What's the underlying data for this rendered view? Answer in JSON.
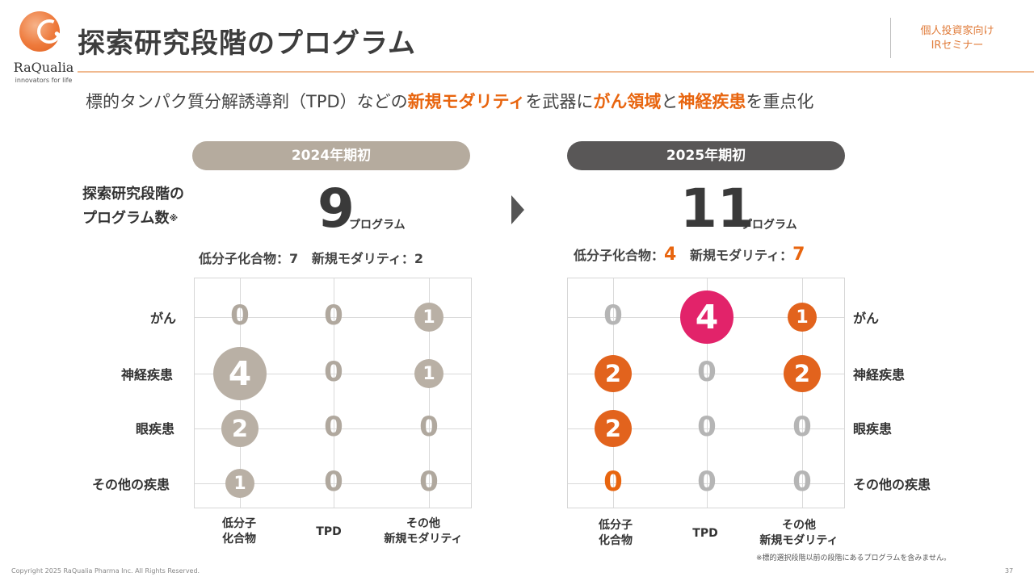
{
  "logo": {
    "name": "RaQualia",
    "tagline": "innovators for life"
  },
  "header": {
    "title": "探索研究段階のプログラム",
    "audience_line1": "個人投資家向け",
    "audience_line2": "IRセミナー"
  },
  "subtitle": {
    "part1": "標的タンパク質分解誘導剤（TPD）などの",
    "hl1": "新規モダリティ",
    "part2": "を武器に",
    "hl2": "がん領域",
    "part3": "と",
    "hl3": "神経疾患",
    "part4": "を重点化"
  },
  "program_label": {
    "line1": "探索研究段階の",
    "line2": "プログラム数",
    "mark": "※"
  },
  "unit": "プログラム",
  "periods": {
    "p2024": {
      "label": "2024年期初",
      "total": "9",
      "small_label": "低分子化合物：",
      "small_value": "7",
      "modality_label": "新規モダリティ：",
      "modality_value": "2"
    },
    "p2025": {
      "label": "2025年期初",
      "total": "11",
      "small_label": "低分子化合物：",
      "small_value": "4",
      "modality_label": "新規モダリティ：",
      "modality_value": "7"
    }
  },
  "rows": [
    "がん",
    "神経疾患",
    "眼疾患",
    "その他の疾患"
  ],
  "columns": [
    {
      "line1": "低分子",
      "line2": "化合物"
    },
    {
      "line1": "TPD",
      "line2": ""
    },
    {
      "line1": "その他",
      "line2": "新規モダリティ"
    }
  ],
  "matrix_2024": [
    [
      "0",
      "0",
      "1"
    ],
    [
      "4",
      "0",
      "1"
    ],
    [
      "2",
      "0",
      "0"
    ],
    [
      "1",
      "0",
      "0"
    ]
  ],
  "matrix_2025": [
    [
      "0",
      "4",
      "1"
    ],
    [
      "2",
      "0",
      "2"
    ],
    [
      "2",
      "0",
      "0"
    ],
    [
      "0",
      "0",
      "0"
    ]
  ],
  "colors": {
    "bubble_2024": "#b9b0a5",
    "bubble_2025": "#e2631d",
    "bubble_highlight": "#e2236a",
    "zero_2024": "#b0a89e",
    "zero_2025": "#b5b5b5",
    "zero_highlight": "#e8650f"
  },
  "footnote": "※標的選択段階以前の段階にあるプログラムを含みません。",
  "copyright": "Copyright 2025 RaQualia Pharma Inc. All Rights Reserved.",
  "page_number": "37"
}
